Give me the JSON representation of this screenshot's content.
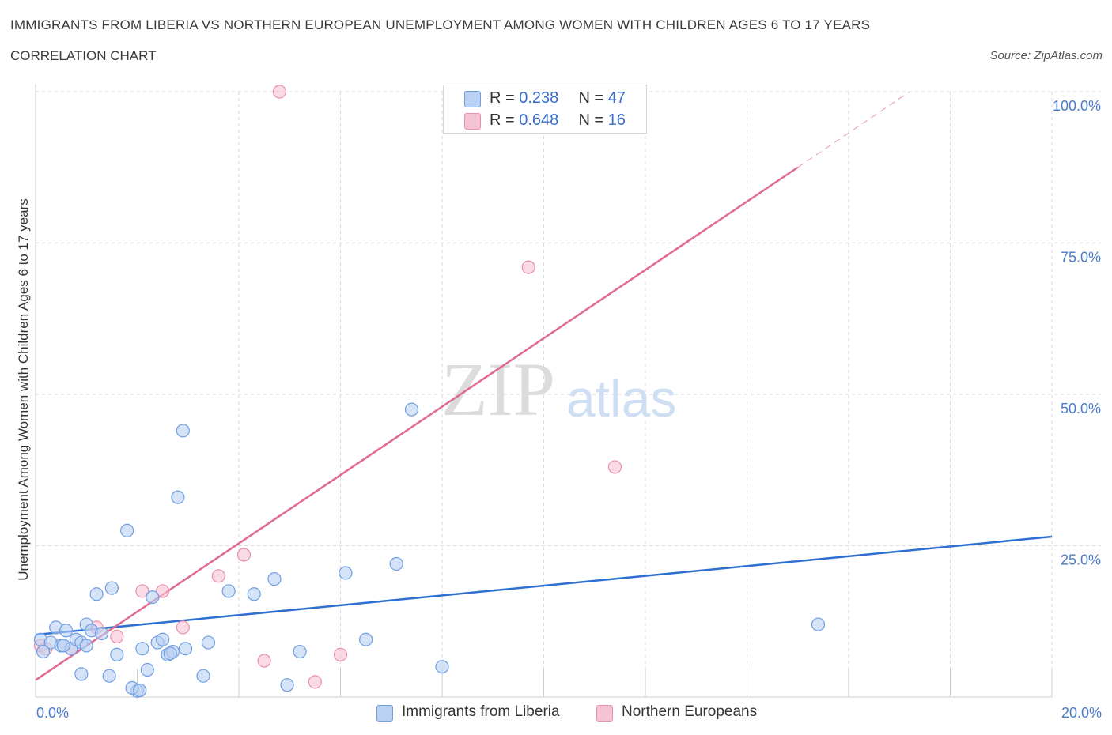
{
  "title": "IMMIGRANTS FROM LIBERIA VS NORTHERN EUROPEAN UNEMPLOYMENT AMONG WOMEN WITH CHILDREN AGES 6 TO 17 YEARS",
  "subtitle": "CORRELATION CHART",
  "source": "Source: ZipAtlas.com",
  "watermark": {
    "zip": "ZIP",
    "atlas": "atlas"
  },
  "colors": {
    "blue_fill": "#b9d1f3",
    "blue_stroke": "#6f9ee0",
    "blue_line": "#2e6fd2",
    "pink_fill": "#f6c3d3",
    "pink_stroke": "#e98fad",
    "pink_line": "#e06a93",
    "grid": "#d9d9d9",
    "tick_text": "#4a7cc9"
  },
  "legend_top": [
    {
      "r_label": "R =",
      "r_value": "0.238",
      "n_label": "N =",
      "n_value": "47"
    },
    {
      "r_label": "R =",
      "r_value": "0.648",
      "n_label": "N =",
      "n_value": "16"
    }
  ],
  "chart_data": {
    "type": "scatter",
    "title": "IMMIGRANTS FROM LIBERIA VS NORTHERN EUROPEAN UNEMPLOYMENT AMONG WOMEN WITH CHILDREN AGES 6 TO 17 YEARS",
    "xlabel": "",
    "ylabel": "Unemployment Among Women with Children Ages 6 to 17 years",
    "xlim": [
      0,
      20
    ],
    "ylim": [
      0,
      100
    ],
    "x_tick_labels": [
      "0.0%",
      "20.0%"
    ],
    "y_ticks": [
      25,
      50,
      75,
      100
    ],
    "y_tick_labels": [
      "25.0%",
      "50.0%",
      "75.0%",
      "100.0%"
    ],
    "grid": true,
    "legend_position": "bottom",
    "series": [
      {
        "name": "Immigrants from Liberia",
        "r": 0.238,
        "n": 47,
        "trend": {
          "x0": 0,
          "y0": 10.3,
          "x1": 20,
          "y1": 26.5
        },
        "points": [
          [
            0.1,
            9.5
          ],
          [
            0.3,
            9.0
          ],
          [
            0.4,
            11.5
          ],
          [
            0.5,
            8.5
          ],
          [
            0.6,
            11.0
          ],
          [
            0.7,
            8.0
          ],
          [
            0.8,
            9.5
          ],
          [
            0.9,
            9.0
          ],
          [
            1.0,
            12.0
          ],
          [
            1.1,
            11.0
          ],
          [
            1.2,
            17.0
          ],
          [
            1.3,
            10.5
          ],
          [
            1.5,
            18.0
          ],
          [
            1.6,
            7.0
          ],
          [
            1.8,
            27.5
          ],
          [
            2.0,
            1.0
          ],
          [
            2.1,
            8.0
          ],
          [
            2.2,
            4.5
          ],
          [
            2.3,
            16.5
          ],
          [
            2.4,
            9.0
          ],
          [
            2.5,
            9.5
          ],
          [
            2.6,
            7.0
          ],
          [
            2.7,
            7.5
          ],
          [
            2.8,
            33.0
          ],
          [
            2.9,
            44.0
          ],
          [
            2.95,
            8.0
          ],
          [
            3.3,
            3.5
          ],
          [
            3.4,
            9.0
          ],
          [
            3.8,
            17.5
          ],
          [
            4.3,
            17.0
          ],
          [
            4.7,
            19.5
          ],
          [
            4.95,
            2.0
          ],
          [
            5.2,
            7.5
          ],
          [
            6.1,
            20.5
          ],
          [
            6.5,
            9.5
          ],
          [
            7.1,
            22.0
          ],
          [
            7.4,
            47.5
          ],
          [
            8.0,
            5.0
          ],
          [
            15.4,
            12.0
          ],
          [
            0.15,
            7.5
          ],
          [
            0.9,
            3.8
          ],
          [
            1.0,
            8.5
          ],
          [
            1.45,
            3.5
          ],
          [
            1.9,
            1.5
          ],
          [
            0.55,
            8.5
          ],
          [
            2.65,
            7.2
          ],
          [
            2.05,
            1.1
          ]
        ]
      },
      {
        "name": "Northern Europeans",
        "r": 0.648,
        "n": 16,
        "trend": {
          "x0": 0,
          "y0": 2.8,
          "x1": 15.0,
          "y1": 87.5,
          "dashed_to_x": 17.2,
          "dashed_to_y": 100
        },
        "points": [
          [
            0.1,
            8.5
          ],
          [
            0.2,
            8.0
          ],
          [
            0.7,
            8.0
          ],
          [
            1.2,
            11.5
          ],
          [
            1.6,
            10.0
          ],
          [
            2.1,
            17.5
          ],
          [
            2.5,
            17.5
          ],
          [
            2.9,
            11.5
          ],
          [
            3.6,
            20.0
          ],
          [
            4.1,
            23.5
          ],
          [
            4.5,
            6.0
          ],
          [
            4.8,
            100.0
          ],
          [
            5.5,
            2.5
          ],
          [
            6.0,
            7.0
          ],
          [
            9.7,
            71.0
          ],
          [
            11.4,
            38.0
          ]
        ]
      }
    ]
  },
  "legend_bottom": [
    {
      "label": "Immigrants from Liberia"
    },
    {
      "label": "Northern Europeans"
    }
  ]
}
